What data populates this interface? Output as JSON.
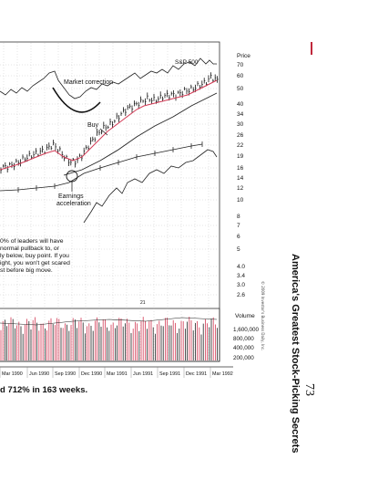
{
  "chart": {
    "index_label": "S&P 500",
    "price_header": "Price",
    "volume_header": "Volume",
    "price_ticks": [
      "70",
      "60",
      "50",
      "40",
      "34",
      "30",
      "26",
      "22",
      "19",
      "16",
      "14",
      "12",
      "10",
      "8",
      "7",
      "6",
      "5",
      "4.0",
      "3.4",
      "3.0",
      "2.6"
    ],
    "volume_ticks": [
      "1,600,000",
      "800,000",
      "400,000",
      "200,000"
    ],
    "x_labels": [
      "Mar 1990",
      "Jun 1990",
      "Sep 1990",
      "Dec 1990",
      "Mar 1991",
      "Jun 1991",
      "Sep 1991",
      "Dec 1991",
      "Mar 1992"
    ],
    "annotations": {
      "market_correction": "Market correction",
      "buy": "Buy",
      "earnings_line1": "Earnings",
      "earnings_line2": "acceleration",
      "small_marker": "21"
    },
    "note_lines": [
      "0% of leaders will have",
      "normal pullback to, or",
      "ly below, buy point. If you",
      "ight, you won't get scared",
      "st before big move."
    ],
    "colors": {
      "moving_average": "#d23a55",
      "volume_bars": "#d23a55",
      "accent_rule": "#c0283c",
      "grid": "#bfbfbf"
    }
  },
  "caption": "d 712% in 163 weeks.",
  "side_title": "America's Greatest Stock-Picking Secrets",
  "page_number": "73",
  "copyright": "© 2009 Investor's Business Daily, Inc."
}
